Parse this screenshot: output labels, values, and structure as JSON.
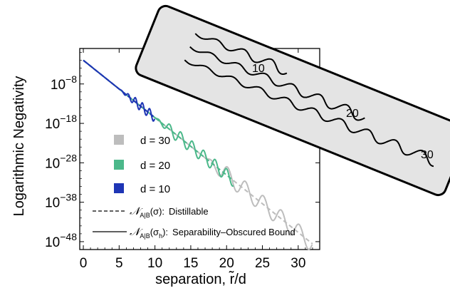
{
  "chart_data": {
    "type": "line",
    "xlabel": "separation, r̃/d",
    "ylabel": "Logarithmic Negativity",
    "xlim": [
      -0.5,
      33
    ],
    "ylim_log10": [
      -50,
      1
    ],
    "x_ticks": [
      0,
      5,
      10,
      15,
      20,
      25,
      30
    ],
    "x_tick_labels": [
      "0",
      "5",
      "10",
      "15",
      "20",
      "25",
      "30"
    ],
    "y_ticks_log10": [
      -8,
      -18,
      -28,
      -38,
      -48
    ],
    "y_tick_labels": [
      {
        "base": "10",
        "exp": "−8"
      },
      {
        "base": "10",
        "exp": "−18"
      },
      {
        "base": "10",
        "exp": "−28"
      },
      {
        "base": "10",
        "exp": "−38"
      },
      {
        "base": "10",
        "exp": "−48"
      }
    ],
    "scale": "log-y",
    "series": [
      {
        "name": "d = 30",
        "color": "#bdbdbd",
        "x_max": 32,
        "oscillation_start": 17,
        "oscillation_amp": 2.2,
        "period": 2.5
      },
      {
        "name": "d = 20",
        "color": "#4bb88a",
        "x_max": 21,
        "oscillation_start": 10,
        "oscillation_amp": 1.6,
        "period": 1.6
      },
      {
        "name": "d = 10",
        "color": "#1e35b5",
        "x_max": 10,
        "oscillation_start": 5,
        "oscillation_amp": 1.2,
        "period": 1.0
      }
    ],
    "trend": {
      "y_at_0_log10": -2.0,
      "slope_log10_per_unit": -1.455
    },
    "legend": {
      "placement": "left-center",
      "entries": [
        "d = 30",
        "d = 20",
        "d = 10"
      ],
      "line_entries": [
        {
          "style": "dashed",
          "label_prefix": "𝒩",
          "label_sub": "A|B",
          "label_arg": "(σ):",
          "label_text": "Distillable"
        },
        {
          "style": "solid",
          "label_prefix": "𝒩",
          "label_sub": "A|B",
          "label_arg": "(σ",
          "label_arg_sub": "h",
          "label_arg_end": "):",
          "label_text": "Separability–Obscured Bound"
        }
      ]
    },
    "inset": {
      "labels": [
        "10",
        "20",
        "30"
      ],
      "background": "#e4e4e4"
    }
  }
}
